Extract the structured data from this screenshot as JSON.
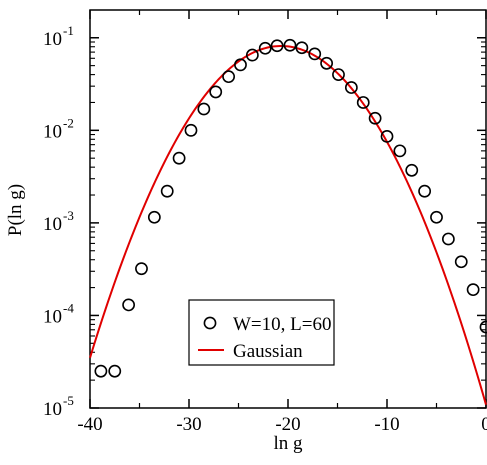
{
  "chart_data": {
    "type": "scatter",
    "xlabel": "ln g",
    "ylabel": "P(ln g)",
    "xlim": [
      -40,
      0
    ],
    "ylim_log10": [
      -5,
      -0.7
    ],
    "yscale": "log",
    "grid": false,
    "legend_position": "bottom-center",
    "x_ticks": [
      -40,
      -30,
      -20,
      -10,
      0
    ],
    "x_tick_labels": [
      "-40",
      "-30",
      "-20",
      "-10",
      "0"
    ],
    "y_ticks_log10": [
      -5,
      -4,
      -3,
      -2,
      -1
    ],
    "y_tick_labels": [
      {
        "base": "10",
        "exp": "-5"
      },
      {
        "base": "10",
        "exp": "-4"
      },
      {
        "base": "10",
        "exp": "-3"
      },
      {
        "base": "10",
        "exp": "-2"
      },
      {
        "base": "10",
        "exp": "-1"
      }
    ],
    "series": [
      {
        "name": "W=10, L=60",
        "marker": "open-circle",
        "color": "#000000",
        "x": [
          -38.9,
          -37.5,
          -36.1,
          -34.8,
          -33.5,
          -32.2,
          -31.0,
          -29.8,
          -28.5,
          -27.3,
          -26.0,
          -24.8,
          -23.6,
          -22.3,
          -21.1,
          -19.8,
          -18.6,
          -17.3,
          -16.1,
          -14.9,
          -13.6,
          -12.4,
          -11.2,
          -10.0,
          -8.7,
          -7.5,
          -6.2,
          -5.0,
          -3.8,
          -2.5,
          -1.3,
          0.0
        ],
        "y": [
          2.5e-05,
          2.5e-05,
          0.00013,
          0.00032,
          0.00115,
          0.0022,
          0.005,
          0.01,
          0.017,
          0.026,
          0.038,
          0.051,
          0.065,
          0.077,
          0.082,
          0.083,
          0.078,
          0.067,
          0.053,
          0.04,
          0.029,
          0.02,
          0.0135,
          0.0086,
          0.006,
          0.0037,
          0.0022,
          0.00115,
          0.00067,
          0.00038,
          0.00019,
          7.5e-05
        ]
      },
      {
        "name": "Gaussian",
        "type": "line",
        "color": "#e00000",
        "mu": -20.7,
        "sigma": 4.9,
        "peak": 0.0815,
        "x_range": [
          -40,
          0
        ]
      }
    ]
  }
}
